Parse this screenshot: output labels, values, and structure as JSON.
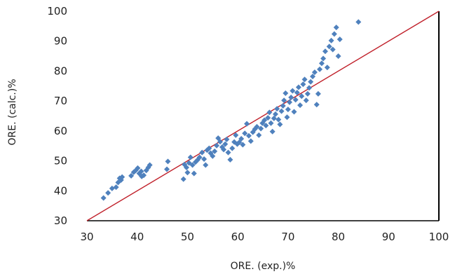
{
  "chart_data": {
    "type": "scatter",
    "title": "",
    "xlabel": "ORE. (exp.)%",
    "ylabel": "ORE. (calc.)%",
    "xlim": [
      30,
      100
    ],
    "ylim": [
      30,
      100
    ],
    "xticks": [
      "30",
      "40",
      "50",
      "60",
      "70",
      "80",
      "90",
      "100"
    ],
    "yticks": [
      "30",
      "40",
      "50",
      "60",
      "70",
      "80",
      "90",
      "100"
    ],
    "grid": false,
    "legend": "none",
    "marker_color": "#4F81BD",
    "reference_line": {
      "from": [
        30,
        30
      ],
      "to": [
        100,
        100
      ],
      "color": "#C0202A"
    },
    "series": [
      {
        "points": [
          [
            33.3,
            37.6
          ],
          [
            34.2,
            39.3
          ],
          [
            35.0,
            40.8
          ],
          [
            35.8,
            41.2
          ],
          [
            36.2,
            42.8
          ],
          [
            36.5,
            44.2
          ],
          [
            36.8,
            43.6
          ],
          [
            37.0,
            44.6
          ],
          [
            38.8,
            45.0
          ],
          [
            39.3,
            46.2
          ],
          [
            39.7,
            46.8
          ],
          [
            40.1,
            47.6
          ],
          [
            40.4,
            45.8
          ],
          [
            40.8,
            46.5
          ],
          [
            40.9,
            44.8
          ],
          [
            41.3,
            45.2
          ],
          [
            41.8,
            46.8
          ],
          [
            42.2,
            47.8
          ],
          [
            42.5,
            48.6
          ],
          [
            45.9,
            47.2
          ],
          [
            46.1,
            49.8
          ],
          [
            49.2,
            43.9
          ],
          [
            49.4,
            48.8
          ],
          [
            49.8,
            47.8
          ],
          [
            50.0,
            46.1
          ],
          [
            50.3,
            49.3
          ],
          [
            50.6,
            51.2
          ],
          [
            51.0,
            48.6
          ],
          [
            51.3,
            45.8
          ],
          [
            51.6,
            49.6
          ],
          [
            52.0,
            50.3
          ],
          [
            52.4,
            51.2
          ],
          [
            52.9,
            52.8
          ],
          [
            53.3,
            50.6
          ],
          [
            53.6,
            48.6
          ],
          [
            53.9,
            53.6
          ],
          [
            54.3,
            54.2
          ],
          [
            54.6,
            52.6
          ],
          [
            55.0,
            51.6
          ],
          [
            55.4,
            53.2
          ],
          [
            55.8,
            55.1
          ],
          [
            56.1,
            57.6
          ],
          [
            56.5,
            56.4
          ],
          [
            56.9,
            54.6
          ],
          [
            57.2,
            53.8
          ],
          [
            57.5,
            55.6
          ],
          [
            57.8,
            57.2
          ],
          [
            58.1,
            52.8
          ],
          [
            58.5,
            50.4
          ],
          [
            58.9,
            54.2
          ],
          [
            59.3,
            56.3
          ],
          [
            59.6,
            58.6
          ],
          [
            59.9,
            55.6
          ],
          [
            60.3,
            56.2
          ],
          [
            60.7,
            57.4
          ],
          [
            61.0,
            55.4
          ],
          [
            61.4,
            59.2
          ],
          [
            61.8,
            62.4
          ],
          [
            62.2,
            58.4
          ],
          [
            62.6,
            56.6
          ],
          [
            63.0,
            59.6
          ],
          [
            63.4,
            60.6
          ],
          [
            63.8,
            61.4
          ],
          [
            64.2,
            58.6
          ],
          [
            64.6,
            60.8
          ],
          [
            64.9,
            62.6
          ],
          [
            65.3,
            63.6
          ],
          [
            65.6,
            61.8
          ],
          [
            66.0,
            64.4
          ],
          [
            66.3,
            66.2
          ],
          [
            66.6,
            62.6
          ],
          [
            66.9,
            59.8
          ],
          [
            67.2,
            64.2
          ],
          [
            67.5,
            65.6
          ],
          [
            67.8,
            67.4
          ],
          [
            68.1,
            63.8
          ],
          [
            68.4,
            62.2
          ],
          [
            68.7,
            66.6
          ],
          [
            69.0,
            68.4
          ],
          [
            69.2,
            70.2
          ],
          [
            69.5,
            72.6
          ],
          [
            69.8,
            64.6
          ],
          [
            70.0,
            67.2
          ],
          [
            70.3,
            69.6
          ],
          [
            70.6,
            71.2
          ],
          [
            70.9,
            73.4
          ],
          [
            71.2,
            66.4
          ],
          [
            71.5,
            70.4
          ],
          [
            71.8,
            72.8
          ],
          [
            72.1,
            74.6
          ],
          [
            72.4,
            68.6
          ],
          [
            72.7,
            71.6
          ],
          [
            73.0,
            75.6
          ],
          [
            73.3,
            77.2
          ],
          [
            73.6,
            70.2
          ],
          [
            73.9,
            72.4
          ],
          [
            74.2,
            74.4
          ],
          [
            74.5,
            76.4
          ],
          [
            74.9,
            78.2
          ],
          [
            75.3,
            79.6
          ],
          [
            75.7,
            68.8
          ],
          [
            76.0,
            72.4
          ],
          [
            76.3,
            80.6
          ],
          [
            76.7,
            82.6
          ],
          [
            77.0,
            84.2
          ],
          [
            77.4,
            86.6
          ],
          [
            77.8,
            81.2
          ],
          [
            78.2,
            88.2
          ],
          [
            78.6,
            90.2
          ],
          [
            78.9,
            87.2
          ],
          [
            79.2,
            92.4
          ],
          [
            79.6,
            94.6
          ],
          [
            80.0,
            85.0
          ],
          [
            80.3,
            90.6
          ],
          [
            84.0,
            96.4
          ]
        ]
      }
    ]
  }
}
